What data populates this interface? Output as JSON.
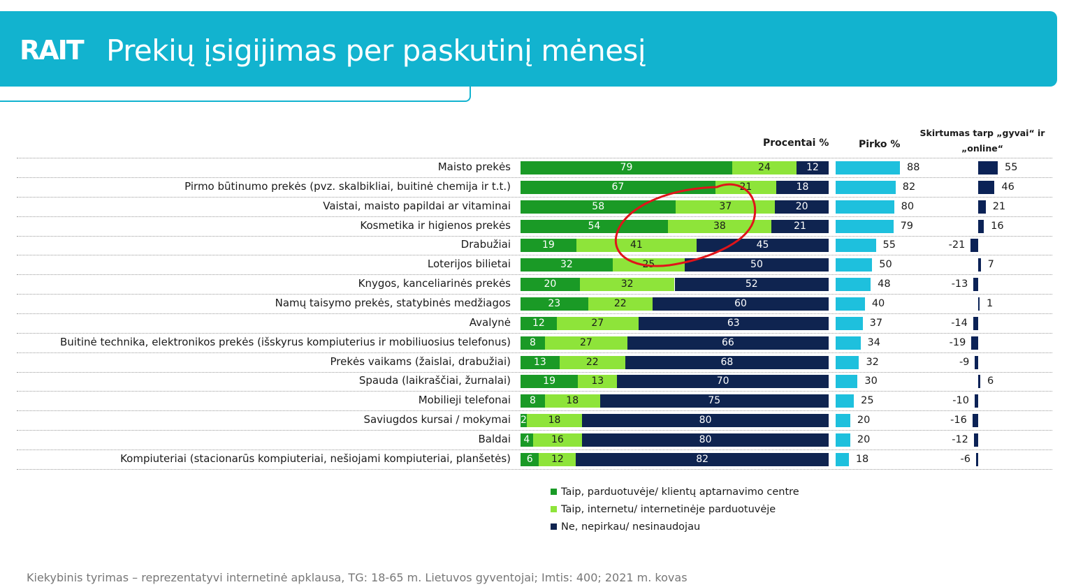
{
  "header": {
    "logo": "RAIT",
    "title": "Prekių įsigijimas per paskutinį mėnesį"
  },
  "columns": {
    "procentai": "Procentai %",
    "pirko": "Pirko %",
    "skirtumas_line1": "Skirtumas tarp „gyvai“ ir",
    "skirtumas_line2": "„online“"
  },
  "colors": {
    "in_store": "#1a9a26",
    "online": "#8ee43a",
    "no": "#0f2450",
    "pirko": "#1ec0dd",
    "diff": "#0b2256",
    "header": "#12b3cf",
    "annotation": "#e0141a"
  },
  "chart_data": {
    "type": "bar",
    "orientation": "horizontal",
    "stacked": true,
    "categories": [
      "Maisto prekės",
      "Pirmo būtinumo prekės (pvz. skalbikliai, buitinė chemija ir t.t.)",
      "Vaistai, maisto papildai ar vitaminai",
      "Kosmetika ir higienos prekės",
      "Drabužiai",
      "Loterijos bilietai",
      "Knygos, kanceliarinės prekės",
      "Namų taisymo prekės, statybinės medžiagos",
      "Avalynė",
      "Buitinė technika, elektronikos prekės (išskyrus kompiuterius ir mobiliuosius telefonus)",
      "Prekės vaikams (žaislai, drabužiai)",
      "Spauda (laikraščiai, žurnalai)",
      "Mobilieji telefonai",
      "Saviugdos kursai / mokymai",
      "Baldai",
      "Kompiuteriai (stacionarūs kompiuteriai, nešiojami kompiuteriai, planšetės)"
    ],
    "series": [
      {
        "name": "Taip, parduotuvėje/ klientų aptarnavimo centre",
        "values": [
          79,
          67,
          58,
          54,
          19,
          32,
          20,
          23,
          12,
          8,
          13,
          19,
          8,
          2,
          4,
          6
        ]
      },
      {
        "name": "Taip, internetu/ internetinėje parduotuvėje",
        "values": [
          24,
          21,
          37,
          38,
          41,
          25,
          32,
          22,
          27,
          27,
          22,
          13,
          18,
          18,
          16,
          12
        ]
      },
      {
        "name": "Ne, nepirkau/ nesinaudojau",
        "values": [
          12,
          18,
          20,
          21,
          45,
          50,
          52,
          60,
          63,
          66,
          68,
          70,
          75,
          80,
          80,
          82
        ]
      }
    ],
    "pirko": [
      88,
      82,
      80,
      79,
      55,
      50,
      48,
      40,
      37,
      34,
      32,
      30,
      25,
      20,
      20,
      18
    ],
    "difference": [
      55,
      46,
      21,
      16,
      -21,
      7,
      -13,
      1,
      -14,
      -19,
      -9,
      6,
      -10,
      -16,
      -12,
      -6
    ]
  },
  "footer": "Kiekybinis tyrimas – reprezentatyvi internetinė apklausa, TG: 18-65 m. Lietuvos gyventojai; Imtis: 400; 2021 m. kovas"
}
